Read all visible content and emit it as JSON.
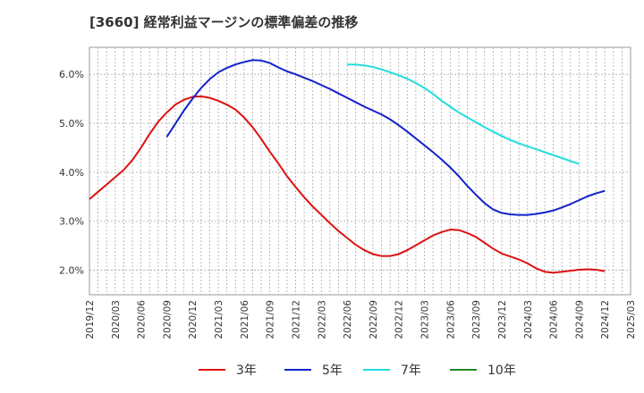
{
  "chart_data": {
    "type": "line",
    "title": "[3660]  経常利益マージンの標準偏差の推移",
    "xlabel": "",
    "ylabel": "",
    "ylim": [
      1.5,
      6.55
    ],
    "y_ticks": [
      2.0,
      3.0,
      4.0,
      5.0,
      6.0
    ],
    "y_tick_labels": [
      "2.0%",
      "3.0%",
      "4.0%",
      "5.0%",
      "6.0%"
    ],
    "x_tick_labels": [
      "2019/12",
      "2020/03",
      "2020/06",
      "2020/09",
      "2020/12",
      "2021/03",
      "2021/06",
      "2021/09",
      "2021/12",
      "2022/03",
      "2022/06",
      "2022/09",
      "2022/12",
      "2023/03",
      "2023/06",
      "2023/09",
      "2023/12",
      "2024/03",
      "2024/06",
      "2024/09",
      "2024/12",
      "2025/03"
    ],
    "grid": true,
    "legend_position": "bottom",
    "series": [
      {
        "name": "3年",
        "color": "#dd1111",
        "points": [
          [
            "2019/12",
            3.45
          ],
          [
            "2020/01",
            3.6
          ],
          [
            "2020/02",
            3.75
          ],
          [
            "2020/03",
            3.9
          ],
          [
            "2020/04",
            4.05
          ],
          [
            "2020/05",
            4.25
          ],
          [
            "2020/06",
            4.5
          ],
          [
            "2020/07",
            4.78
          ],
          [
            "2020/08",
            5.03
          ],
          [
            "2020/09",
            5.22
          ],
          [
            "2020/10",
            5.38
          ],
          [
            "2020/11",
            5.48
          ],
          [
            "2020/12",
            5.54
          ],
          [
            "2021/01",
            5.55
          ],
          [
            "2021/02",
            5.52
          ],
          [
            "2021/03",
            5.46
          ],
          [
            "2021/04",
            5.38
          ],
          [
            "2021/05",
            5.28
          ],
          [
            "2021/06",
            5.12
          ],
          [
            "2021/07",
            4.92
          ],
          [
            "2021/08",
            4.68
          ],
          [
            "2021/09",
            4.42
          ],
          [
            "2021/10",
            4.18
          ],
          [
            "2021/11",
            3.92
          ],
          [
            "2021/12",
            3.7
          ],
          [
            "2022/01",
            3.49
          ],
          [
            "2022/02",
            3.3
          ],
          [
            "2022/03",
            3.13
          ],
          [
            "2022/04",
            2.96
          ],
          [
            "2022/05",
            2.8
          ],
          [
            "2022/06",
            2.66
          ],
          [
            "2022/07",
            2.52
          ],
          [
            "2022/08",
            2.41
          ],
          [
            "2022/09",
            2.33
          ],
          [
            "2022/10",
            2.29
          ],
          [
            "2022/11",
            2.29
          ],
          [
            "2022/12",
            2.33
          ],
          [
            "2023/01",
            2.41
          ],
          [
            "2023/02",
            2.51
          ],
          [
            "2023/03",
            2.61
          ],
          [
            "2023/04",
            2.71
          ],
          [
            "2023/05",
            2.78
          ],
          [
            "2023/06",
            2.83
          ],
          [
            "2023/07",
            2.82
          ],
          [
            "2023/08",
            2.76
          ],
          [
            "2023/09",
            2.68
          ],
          [
            "2023/10",
            2.56
          ],
          [
            "2023/11",
            2.44
          ],
          [
            "2023/12",
            2.34
          ],
          [
            "2024/01",
            2.28
          ],
          [
            "2024/02",
            2.22
          ],
          [
            "2024/03",
            2.14
          ],
          [
            "2024/04",
            2.04
          ],
          [
            "2024/05",
            1.97
          ],
          [
            "2024/06",
            1.95
          ],
          [
            "2024/07",
            1.97
          ],
          [
            "2024/08",
            1.99
          ],
          [
            "2024/09",
            2.01
          ],
          [
            "2024/10",
            2.02
          ],
          [
            "2024/11",
            2.01
          ],
          [
            "2024/12",
            1.98
          ]
        ]
      },
      {
        "name": "5年",
        "color": "#1122cc",
        "points": [
          [
            "2020/09",
            4.72
          ],
          [
            "2020/10",
            4.99
          ],
          [
            "2020/11",
            5.26
          ],
          [
            "2020/12",
            5.5
          ],
          [
            "2021/01",
            5.72
          ],
          [
            "2021/02",
            5.9
          ],
          [
            "2021/03",
            6.04
          ],
          [
            "2021/04",
            6.13
          ],
          [
            "2021/05",
            6.2
          ],
          [
            "2021/06",
            6.25
          ],
          [
            "2021/07",
            6.29
          ],
          [
            "2021/08",
            6.28
          ],
          [
            "2021/09",
            6.23
          ],
          [
            "2021/10",
            6.14
          ],
          [
            "2021/11",
            6.06
          ],
          [
            "2021/12",
            6.0
          ],
          [
            "2022/01",
            5.93
          ],
          [
            "2022/02",
            5.86
          ],
          [
            "2022/03",
            5.78
          ],
          [
            "2022/04",
            5.7
          ],
          [
            "2022/05",
            5.61
          ],
          [
            "2022/06",
            5.52
          ],
          [
            "2022/07",
            5.43
          ],
          [
            "2022/08",
            5.34
          ],
          [
            "2022/09",
            5.26
          ],
          [
            "2022/10",
            5.18
          ],
          [
            "2022/11",
            5.08
          ],
          [
            "2022/12",
            4.96
          ],
          [
            "2023/01",
            4.83
          ],
          [
            "2023/02",
            4.69
          ],
          [
            "2023/03",
            4.55
          ],
          [
            "2023/04",
            4.41
          ],
          [
            "2023/05",
            4.26
          ],
          [
            "2023/06",
            4.1
          ],
          [
            "2023/07",
            3.92
          ],
          [
            "2023/08",
            3.72
          ],
          [
            "2023/09",
            3.54
          ],
          [
            "2023/10",
            3.37
          ],
          [
            "2023/11",
            3.24
          ],
          [
            "2023/12",
            3.17
          ],
          [
            "2024/01",
            3.14
          ],
          [
            "2024/02",
            3.13
          ],
          [
            "2024/03",
            3.13
          ],
          [
            "2024/04",
            3.15
          ],
          [
            "2024/05",
            3.18
          ],
          [
            "2024/06",
            3.22
          ],
          [
            "2024/07",
            3.28
          ],
          [
            "2024/08",
            3.35
          ],
          [
            "2024/09",
            3.43
          ],
          [
            "2024/10",
            3.51
          ],
          [
            "2024/11",
            3.57
          ],
          [
            "2024/12",
            3.62
          ]
        ]
      },
      {
        "name": "7年",
        "color": "#22dddd",
        "points": [
          [
            "2022/06",
            6.2
          ],
          [
            "2022/07",
            6.2
          ],
          [
            "2022/08",
            6.18
          ],
          [
            "2022/09",
            6.15
          ],
          [
            "2022/10",
            6.1
          ],
          [
            "2022/11",
            6.04
          ],
          [
            "2022/12",
            5.98
          ],
          [
            "2023/01",
            5.91
          ],
          [
            "2023/02",
            5.82
          ],
          [
            "2023/03",
            5.72
          ],
          [
            "2023/04",
            5.6
          ],
          [
            "2023/05",
            5.46
          ],
          [
            "2023/06",
            5.34
          ],
          [
            "2023/07",
            5.22
          ],
          [
            "2023/08",
            5.12
          ],
          [
            "2023/09",
            5.02
          ],
          [
            "2023/10",
            4.92
          ],
          [
            "2023/11",
            4.83
          ],
          [
            "2023/12",
            4.74
          ],
          [
            "2024/01",
            4.66
          ],
          [
            "2024/02",
            4.59
          ],
          [
            "2024/03",
            4.53
          ],
          [
            "2024/04",
            4.47
          ],
          [
            "2024/05",
            4.41
          ],
          [
            "2024/06",
            4.35
          ],
          [
            "2024/07",
            4.29
          ],
          [
            "2024/08",
            4.23
          ],
          [
            "2024/09",
            4.17
          ]
        ]
      },
      {
        "name": "10年",
        "color": "#228822",
        "points": []
      }
    ]
  }
}
